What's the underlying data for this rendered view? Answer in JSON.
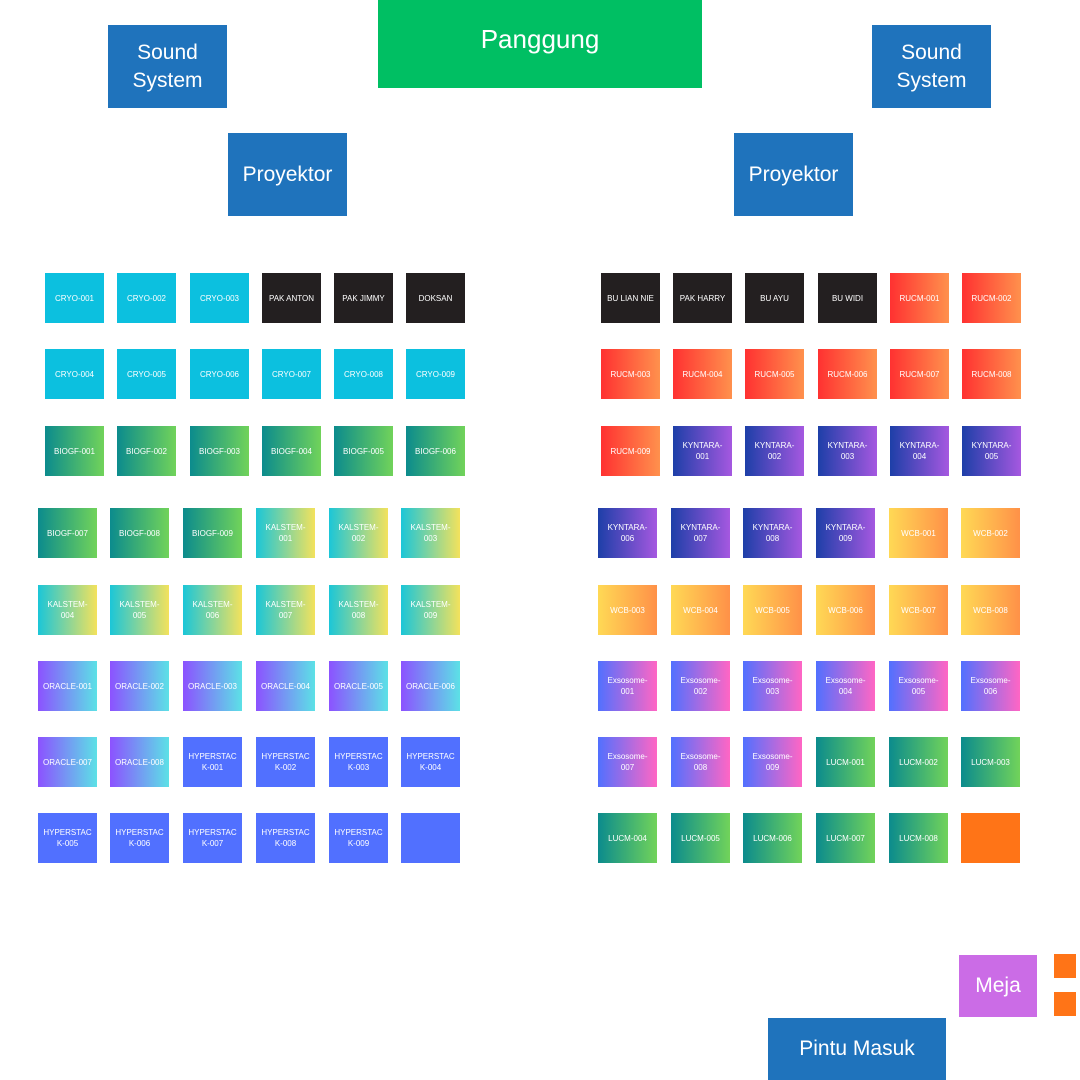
{
  "stage": {
    "label": "Panggung"
  },
  "sound_left": {
    "label": "Sound\nSystem"
  },
  "sound_right": {
    "label": "Sound\nSystem"
  },
  "projector_left": {
    "label": "Proyektor"
  },
  "projector_right": {
    "label": "Proyektor"
  },
  "meja": {
    "label": "Meja"
  },
  "entrance": {
    "label": "Pintu Masuk"
  },
  "colors": {
    "blue_box": "#1f73bc",
    "stage": "#00bf63",
    "meja": "#cb6ce6",
    "orange_accent": "#ff7417",
    "cryo": "#0cc0df",
    "black_seat": "#231f20",
    "hyperstack": "#5170ff"
  },
  "left_seats": [
    [
      "CRYO-001",
      "CRYO-002",
      "CRYO-003",
      "PAK ANTON",
      "PAK JIMMY",
      "DOKSAN"
    ],
    [
      "CRYO-004",
      "CRYO-005",
      "CRYO-006",
      "CRYO-007",
      "CRYO-008",
      "CRYO-009"
    ],
    [
      "BIOGF-001",
      "BIOGF-002",
      "BIOGF-003",
      "BIOGF-004",
      "BIOGF-005",
      "BIOGF-006"
    ],
    [
      "BIOGF-007",
      "BIOGF-008",
      "BIOGF-009",
      "KALSTEM-001",
      "KALSTEM-002",
      "KALSTEM-003"
    ],
    [
      "KALSTEM-004",
      "KALSTEM-005",
      "KALSTEM-006",
      "KALSTEM-007",
      "KALSTEM-008",
      "KALSTEM-009"
    ],
    [
      "ORACLE-001",
      "ORACLE-002",
      "ORACLE-003",
      "ORACLE-004",
      "ORACLE-005",
      "ORACLE-006"
    ],
    [
      "ORACLE-007",
      "ORACLE-008",
      "HYPERSTACK-001",
      "HYPERSTACK-002",
      "HYPERSTACK-003",
      "HYPERSTACK-004"
    ],
    [
      "HYPERSTACK-005",
      "HYPERSTACK-006",
      "HYPERSTACK-007",
      "HYPERSTACK-008",
      "HYPERSTACK-009",
      ""
    ]
  ],
  "right_seats": [
    [
      "BU LIAN NIE",
      "PAK HARRY",
      "BU AYU",
      "BU WIDI",
      "RUCM-001",
      "RUCM-002"
    ],
    [
      "RUCM-003",
      "RUCM-004",
      "RUCM-005",
      "RUCM-006",
      "RUCM-007",
      "RUCM-008"
    ],
    [
      "RUCM-009",
      "KYNTARA-001",
      "KYNTARA-002",
      "KYNTARA-003",
      "KYNTARA-004",
      "KYNTARA-005"
    ],
    [
      "KYNTARA-006",
      "KYNTARA-007",
      "KYNTARA-008",
      "KYNTARA-009",
      "WCB-001",
      "WCB-002"
    ],
    [
      "WCB-003",
      "WCB-004",
      "WCB-005",
      "WCB-006",
      "WCB-007",
      "WCB-008"
    ],
    [
      "Exsosome-001",
      "Exsosome-002",
      "Exsosome-003",
      "Exsosome-004",
      "Exsosome-005",
      "Exsosome-006"
    ],
    [
      "Exsosome-007",
      "Exsosome-008",
      "Exsosome-009",
      "LUCM-001",
      "LUCM-002",
      "LUCM-003"
    ],
    [
      "LUCM-004",
      "LUCM-005",
      "LUCM-006",
      "LUCM-007",
      "LUCM-008",
      ""
    ]
  ]
}
